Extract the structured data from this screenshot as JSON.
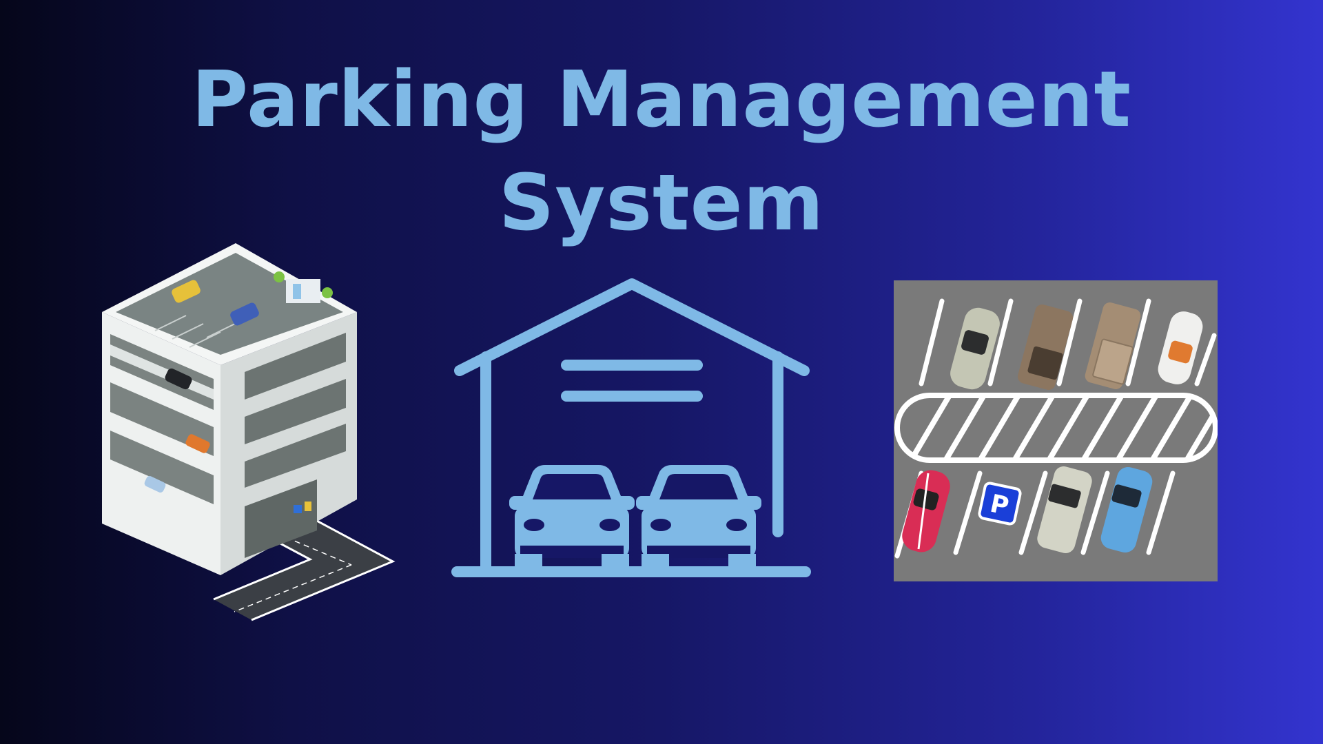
{
  "title": {
    "line1": "Parking Management",
    "line2": "System"
  },
  "colors": {
    "title": "#7fb9e6",
    "accent": "#7fb9e6",
    "background_start": "#05061a",
    "background_end": "#3334cf",
    "lot_asphalt": "#7a7a7a",
    "parking_sign": "#1a3fd8"
  },
  "icons": {
    "building": "multi-storey-parking-icon",
    "garage": "garage-icon",
    "lot": "parking-lot-icon",
    "sign": "parking-sign-icon"
  },
  "sign_letter": "P"
}
